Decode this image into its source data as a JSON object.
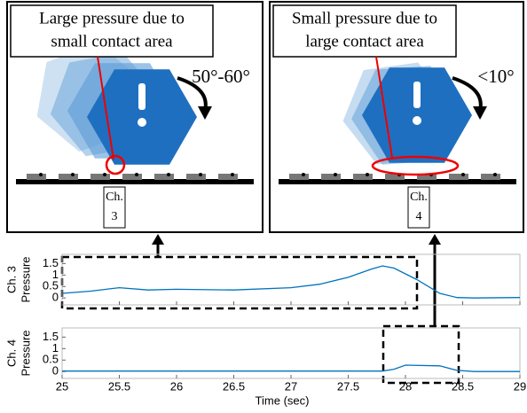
{
  "panels": [
    {
      "callout_lines": [
        "Large pressure due to",
        "small contact area"
      ],
      "angle": "50°-60°",
      "channel": [
        "Ch.",
        "3"
      ]
    },
    {
      "callout_lines": [
        "Small pressure due to",
        "large contact area"
      ],
      "angle": "<10°",
      "channel": [
        "Ch.",
        "4"
      ]
    }
  ],
  "chart_data": [
    {
      "type": "line",
      "ylabel_lines": [
        "Ch. 3",
        "Pressure"
      ],
      "x": [
        25,
        25.25,
        25.5,
        25.75,
        26,
        26.5,
        27,
        27.25,
        27.5,
        27.7,
        27.8,
        27.9,
        28.1,
        28.3,
        28.45,
        28.6,
        29
      ],
      "series": [
        {
          "color": "#0072bd",
          "values": [
            0.2,
            0.3,
            0.45,
            0.35,
            0.38,
            0.35,
            0.45,
            0.6,
            0.9,
            1.25,
            1.4,
            1.3,
            0.8,
            0.2,
            0.02,
            0,
            0.02
          ]
        }
      ],
      "xlim": [
        25,
        29
      ],
      "xticks": [
        25,
        25.5,
        26,
        26.5,
        27,
        27.5,
        28,
        28.5,
        29
      ],
      "ylim": [
        -0.3,
        1.9
      ],
      "yticks": [
        0,
        0.5,
        1,
        1.5
      ]
    },
    {
      "type": "line",
      "ylabel_lines": [
        "Ch. 4",
        "Pressure"
      ],
      "xlabel": "Time (sec)",
      "x": [
        25,
        27.8,
        27.9,
        28,
        28.3,
        28.45,
        28.6,
        29
      ],
      "series": [
        {
          "color": "#0072bd",
          "values": [
            0.02,
            0.02,
            0.1,
            0.28,
            0.25,
            0.05,
            0,
            0
          ]
        }
      ],
      "xlim": [
        25,
        29
      ],
      "xticks": [
        25,
        25.5,
        26,
        26.5,
        27,
        27.5,
        28,
        28.5,
        29
      ],
      "ylim": [
        -0.3,
        1.9
      ],
      "yticks": [
        0,
        0.5,
        1,
        1.5
      ]
    }
  ]
}
